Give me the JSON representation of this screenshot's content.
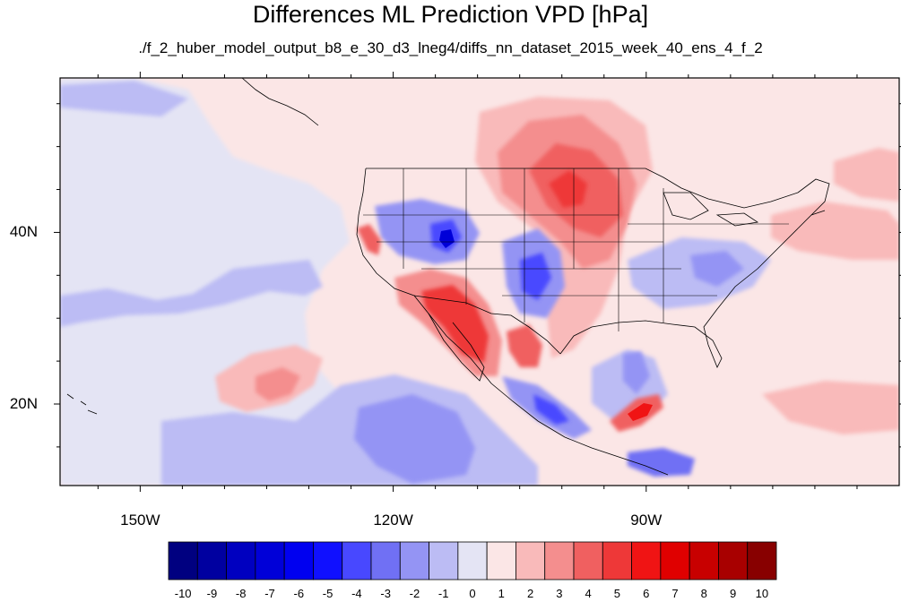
{
  "title": "Differences ML Prediction VPD [hPa]",
  "subtitle": "./f_2_huber_model_output_b8_e_30_d3_lneg4/diffs_nn_dataset_2015_week_40_ens_4_f_2",
  "map": {
    "lat_labels": [
      {
        "value": 40,
        "text": "40N"
      },
      {
        "value": 20,
        "text": "20N"
      }
    ],
    "lon_labels": [
      {
        "value": -150,
        "text": "150W"
      },
      {
        "value": -120,
        "text": "120W"
      },
      {
        "value": -90,
        "text": "90W"
      }
    ],
    "lon_range": [
      -159.5,
      -60
    ],
    "lat_range": [
      10.5,
      58
    ]
  },
  "colorbar": {
    "labels": [
      "-10",
      "-9",
      "-8",
      "-7",
      "-6",
      "-5",
      "-4",
      "-3",
      "-2",
      "-1",
      "0",
      "1",
      "2",
      "3",
      "4",
      "5",
      "6",
      "7",
      "8",
      "9",
      "10"
    ],
    "colors": [
      "#000080",
      "#0000a0",
      "#0000c0",
      "#0000d8",
      "#0000f0",
      "#1010ff",
      "#4848ff",
      "#7070f4",
      "#9494f4",
      "#bcbcf4",
      "#e4e4f4",
      "#fbe6e6",
      "#f9baba",
      "#f48e8e",
      "#f06060",
      "#ee3838",
      "#f01414",
      "#e00000",
      "#c80000",
      "#a80000",
      "#880000"
    ]
  }
}
